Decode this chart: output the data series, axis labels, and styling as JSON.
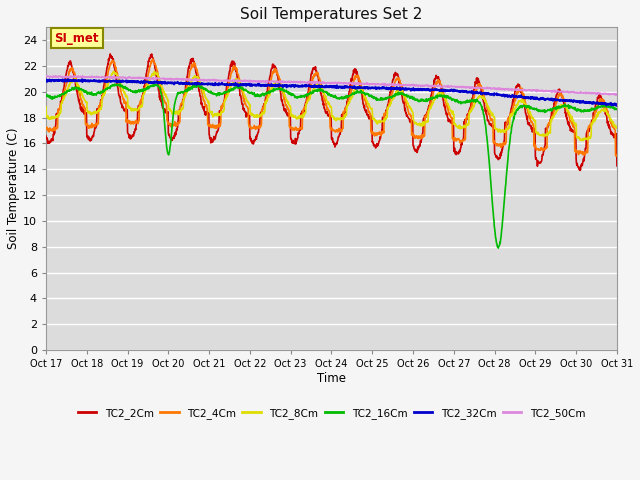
{
  "title": "Soil Temperatures Set 2",
  "xlabel": "Time",
  "ylabel": "Soil Temperature (C)",
  "xlim": [
    0,
    336
  ],
  "ylim": [
    0,
    25
  ],
  "yticks": [
    0,
    2,
    4,
    6,
    8,
    10,
    12,
    14,
    16,
    18,
    20,
    22,
    24
  ],
  "xtick_labels": [
    "Oct 17",
    "Oct 18",
    "Oct 19",
    "Oct 20",
    "Oct 21",
    "Oct 22",
    "Oct 23",
    "Oct 24",
    "Oct 25",
    "Oct 26",
    "Oct 27",
    "Oct 28",
    "Oct 29",
    "Oct 30",
    "Oct 31"
  ],
  "xtick_positions": [
    0,
    24,
    48,
    72,
    96,
    120,
    144,
    168,
    192,
    216,
    240,
    264,
    288,
    312,
    336
  ],
  "series_colors": [
    "#cc0000",
    "#ff7700",
    "#dddd00",
    "#00bb00",
    "#0000cc",
    "#dd88dd"
  ],
  "series_labels": [
    "TC2_2Cm",
    "TC2_4Cm",
    "TC2_8Cm",
    "TC2_16Cm",
    "TC2_32Cm",
    "TC2_50Cm"
  ],
  "bg_color": "#dcdcdc",
  "fig_color": "#f5f5f5",
  "grid_color": "#ffffff",
  "annotation_text": "SI_met",
  "annotation_color": "#cc0000",
  "annotation_bg": "#ffff99",
  "annotation_border": "#888800"
}
